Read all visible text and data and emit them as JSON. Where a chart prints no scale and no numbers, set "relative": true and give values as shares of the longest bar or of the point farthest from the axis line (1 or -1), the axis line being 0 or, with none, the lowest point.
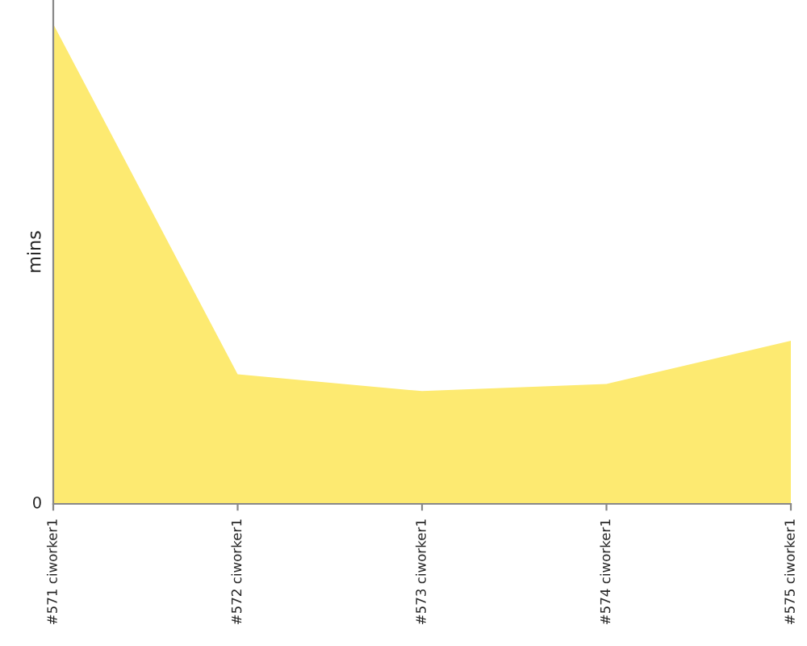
{
  "chart_data": {
    "type": "area",
    "ylabel": "mins",
    "relative": true,
    "annotations": [
      "0"
    ],
    "categories": [
      "#571 ciworker1",
      "#572 ciworker1",
      "#573 ciworker1",
      "#574 ciworker1",
      "#575 ciworker1"
    ],
    "series": [
      {
        "color": "#fdea71",
        "values": [
          1,
          0.27,
          0.235,
          0.25,
          0.34
        ]
      }
    ],
    "grid": false,
    "legend": false
  }
}
